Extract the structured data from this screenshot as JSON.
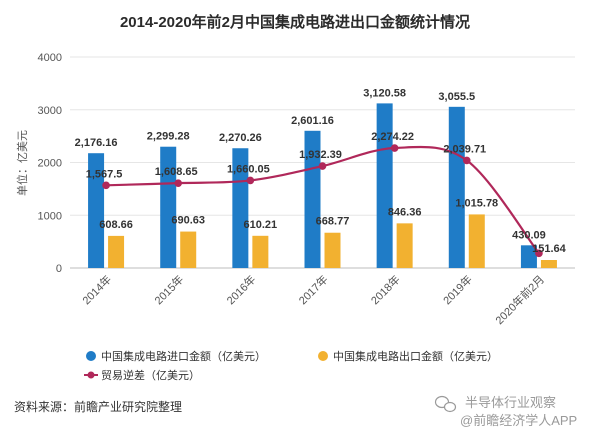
{
  "chart_data": {
    "type": "bar",
    "title": "2014-2020年前2月中国集成电路进出口金额统计情况",
    "ylabel": "单位：亿美元",
    "xlabel": "",
    "categories": [
      "2014年",
      "2015年",
      "2016年",
      "2017年",
      "2018年",
      "2019年",
      "2020年前2月"
    ],
    "ylim": [
      0,
      4000
    ],
    "yticks": [
      "0",
      "1000",
      "2000",
      "3000",
      "4000"
    ],
    "grid": true,
    "legend_placement": "bottom",
    "series": [
      {
        "name": "中国集成电路进口金额（亿美元）",
        "type": "bar",
        "color": "#1f7cc7",
        "values": [
          2176.16,
          2299.28,
          2270.26,
          2601.16,
          3120.58,
          3055.5,
          430.09
        ],
        "labels": [
          "2,176.16",
          "2,299.28",
          "2,270.26",
          "2,601.16",
          "3,120.58",
          "3,055.5",
          "430.09"
        ]
      },
      {
        "name": "中国集成电路出口金额（亿美元）",
        "type": "bar",
        "color": "#f2b130",
        "values": [
          608.66,
          690.63,
          610.21,
          668.77,
          846.36,
          1015.78,
          151.64
        ],
        "labels": [
          "608.66",
          "690.63",
          "610.21",
          "668.77",
          "846.36",
          "1,015.78",
          "151.64"
        ]
      },
      {
        "name": "贸易逆差（亿美元）",
        "type": "line",
        "color": "#b0285a",
        "values": [
          1567.5,
          1608.65,
          1660.05,
          1932.39,
          2274.22,
          2039.71,
          278.45
        ],
        "labels": [
          "1,567.5",
          "1,608.65",
          "1,660.05",
          "1,932.39",
          "2,274.22",
          "2,039.71",
          ""
        ]
      }
    ]
  },
  "source": "资料来源：前瞻产业研究院整理",
  "watermark": {
    "line1": "半导体行业观察",
    "line2": "@前瞻经济学人APP",
    "icon": "wechat-icon"
  }
}
